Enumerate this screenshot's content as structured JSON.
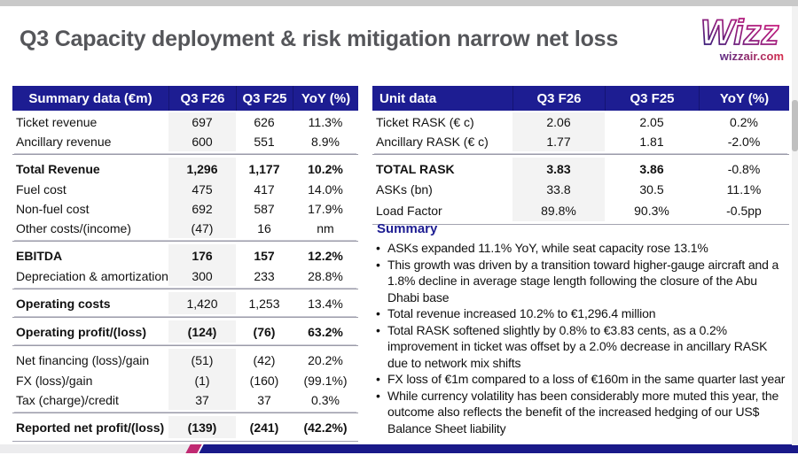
{
  "header": {
    "title": "Q3 Capacity deployment & risk mitigation narrow net loss",
    "logo_brand": "Wizz",
    "logo_domain": "wizzair.com"
  },
  "colors": {
    "table_header_blue": "#1d1d92",
    "brand_magenta": "#c02972",
    "bar_navy": "#191989",
    "title_gray": "#55565a",
    "highlight_column_gray": "#f3f3f3"
  },
  "summary_table": {
    "headers": [
      "Summary data (€m)",
      "Q3 F26",
      "Q3 F25",
      "YoY (%)"
    ],
    "rows": [
      {
        "label": "Ticket revenue",
        "q3f26": "697",
        "q3f25": "626",
        "yoy": "11.3%",
        "emphasis": "none"
      },
      {
        "label": "Ancillary revenue",
        "q3f26": "600",
        "q3f25": "551",
        "yoy": "8.9%",
        "emphasis": "none"
      },
      {
        "label": "Total Revenue",
        "q3f26": "1,296",
        "q3f25": "1,177",
        "yoy": "10.2%",
        "emphasis": "all",
        "rule_above": true
      },
      {
        "label": "Fuel cost",
        "q3f26": "475",
        "q3f25": "417",
        "yoy": "14.0%",
        "emphasis": "none"
      },
      {
        "label": "Non-fuel cost",
        "q3f26": "692",
        "q3f25": "587",
        "yoy": "17.9%",
        "emphasis": "none"
      },
      {
        "label": "Other costs/(income)",
        "q3f26": "(47)",
        "q3f25": "16",
        "yoy": "nm",
        "emphasis": "none"
      },
      {
        "label": "EBITDA",
        "q3f26": "176",
        "q3f25": "157",
        "yoy": "12.2%",
        "emphasis": "all",
        "rule_above": true
      },
      {
        "label": "Depreciation & amortization",
        "q3f26": "300",
        "q3f25": "233",
        "yoy": "28.8%",
        "emphasis": "none"
      },
      {
        "label": "Operating costs",
        "q3f26": "1,420",
        "q3f25": "1,253",
        "yoy": "13.4%",
        "emphasis": "label",
        "rule_above": true
      },
      {
        "label": "Operating profit/(loss)",
        "q3f26": "(124)",
        "q3f25": "(76)",
        "yoy": "63.2%",
        "emphasis": "all",
        "rule_above": true
      },
      {
        "label": "Net financing (loss)/gain",
        "q3f26": "(51)",
        "q3f25": "(42)",
        "yoy": "20.2%",
        "emphasis": "none",
        "rule_above": true
      },
      {
        "label": "FX (loss)/gain",
        "q3f26": "(1)",
        "q3f25": "(160)",
        "yoy": "(99.1%)",
        "emphasis": "none"
      },
      {
        "label": "Tax (charge)/credit",
        "q3f26": "37",
        "q3f25": "37",
        "yoy": "0.3%",
        "emphasis": "none"
      },
      {
        "label": "Reported net profit/(loss)",
        "q3f26": "(139)",
        "q3f25": "(241)",
        "yoy": "(42.2%)",
        "emphasis": "all",
        "rule_above": true,
        "rule_below": true
      }
    ]
  },
  "unit_table": {
    "headers": [
      "Unit data",
      "Q3 F26",
      "Q3 F25",
      "YoY (%)"
    ],
    "rows": [
      {
        "label": "Ticket RASK (€ c)",
        "q3f26": "2.06",
        "q3f25": "2.05",
        "yoy": "0.2%",
        "emphasis": "none"
      },
      {
        "label": "Ancillary RASK (€ c)",
        "q3f26": "1.77",
        "q3f25": "1.81",
        "yoy": "-2.0%",
        "emphasis": "none"
      },
      {
        "label": "TOTAL RASK",
        "q3f26": "3.83",
        "q3f25": "3.86",
        "yoy": "-0.8%",
        "emphasis": "label_values",
        "rule_above": true
      },
      {
        "label": "ASKs (bn)",
        "q3f26": "33.8",
        "q3f25": "30.5",
        "yoy": "11.1%",
        "emphasis": "none"
      },
      {
        "label": "Load Factor",
        "q3f26": "89.8%",
        "q3f25": "90.3%",
        "yoy": "-0.5pp",
        "emphasis": "none",
        "rule_below": true
      }
    ]
  },
  "summary": {
    "heading": "Summary",
    "bullets": [
      "ASKs expanded 11.1% YoY, while seat capacity rose 13.1%",
      "This growth was driven by a transition toward higher-gauge aircraft and a 1.8% decline in average stage length following the closure of the Abu Dhabi base",
      "Total revenue increased 10.2% to €1,296.4 million",
      "Total RASK softened slightly by 0.8% to €3.83 cents, as a 0.2% improvement in ticket was offset by a 2.0% decrease in ancillary RASK due to network mix shifts",
      "FX loss of €1m compared to a loss of €160m in the same quarter last year",
      "While currency volatility has been considerably more muted this year, the outcome also reflects the benefit of the increased hedging of our US$ Balance Sheet liability"
    ]
  }
}
